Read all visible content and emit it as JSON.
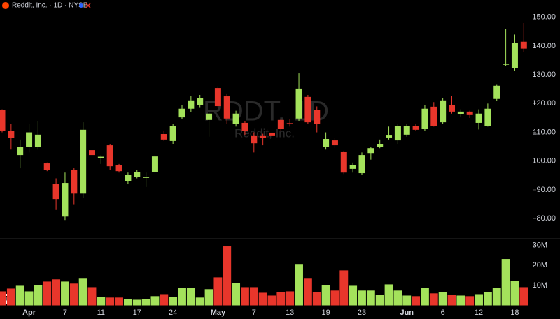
{
  "chart_data": {
    "type": "candlestick",
    "title": "Reddit, Inc. · 1D · NYSE",
    "watermark": "RDDT, 1D",
    "watermark_subtitle": "Reddit, Inc.",
    "categories": [
      null,
      null,
      null,
      "Apr",
      null,
      null,
      null,
      "7",
      null,
      null,
      null,
      "11",
      null,
      null,
      null,
      "17",
      null,
      null,
      null,
      "24",
      null,
      null,
      null,
      null,
      "May",
      null,
      null,
      null,
      "7",
      null,
      null,
      null,
      "13",
      null,
      null,
      null,
      "19",
      null,
      null,
      null,
      "23",
      null,
      null,
      null,
      null,
      "Jun",
      null,
      null,
      null,
      "6",
      null,
      null,
      null,
      "12",
      null,
      null,
      null,
      "18",
      null
    ],
    "open": [
      117.7,
      110.4,
      102.1,
      105,
      105,
      99.2,
      92,
      80.7,
      97,
      88.7,
      103.8,
      101.1,
      105.5,
      98.5,
      93.1,
      94.6,
      94.2,
      96.3,
      109.4,
      107,
      115.2,
      118.2,
      119.6,
      114.3,
      125.4,
      122.5,
      112.8,
      113.3,
      108.7,
      108.7,
      109.9,
      114.3,
      113.2,
      114.8,
      122.3,
      117.7,
      104.8,
      107.2,
      103.1,
      97.3,
      95.8,
      102.8,
      105,
      108.2,
      107.2,
      109.2,
      112.3,
      111.1,
      118.9,
      113.5,
      119.6,
      116.2,
      117.2,
      113.3,
      112.3,
      121.6,
      133.5,
      132.3,
      141.5
    ],
    "high": [
      118,
      112.8,
      107.5,
      113,
      114,
      99.5,
      94,
      96,
      97.5,
      113.5,
      105,
      102,
      106,
      99,
      96,
      97,
      96,
      102,
      110.5,
      113,
      119.5,
      122.5,
      123,
      117,
      126,
      123.5,
      117.5,
      114,
      110,
      109.5,
      111,
      114.5,
      114.5,
      130.5,
      123,
      119,
      110,
      108,
      103.5,
      99.5,
      103,
      105,
      107.5,
      112,
      113,
      113,
      113,
      119.5,
      120.5,
      122,
      122.5,
      118,
      117.5,
      118,
      120,
      126.5,
      146,
      144,
      148
    ],
    "low": [
      110,
      104,
      97.5,
      103,
      104,
      96.5,
      83,
      79.5,
      85,
      87.3,
      101,
      99,
      97,
      96,
      92,
      94,
      91,
      96,
      107,
      106,
      114.5,
      117,
      118.5,
      108.5,
      118.5,
      113,
      112,
      109,
      103,
      105.5,
      106,
      110.5,
      112,
      114,
      113,
      110,
      104,
      104.5,
      95.5,
      96,
      95.3,
      100.5,
      104.5,
      107.5,
      106,
      108.5,
      110.5,
      110.5,
      112,
      113,
      116.5,
      115.5,
      115,
      111,
      112,
      121,
      133,
      131.5,
      138
    ],
    "close": [
      110.4,
      108,
      105,
      110,
      109.2,
      96.8,
      86.8,
      92.4,
      88.7,
      110.9,
      102.1,
      101.5,
      98.2,
      96.5,
      95.3,
      96.3,
      94.4,
      101.6,
      107.5,
      112.1,
      118.2,
      121.1,
      122,
      116.5,
      119.1,
      114.8,
      116.5,
      110.4,
      106.2,
      108,
      108.7,
      111.1,
      113,
      125.2,
      113.5,
      113,
      107.7,
      105.5,
      96,
      98.5,
      102.1,
      104.5,
      105.8,
      108.9,
      112.1,
      112.1,
      110.9,
      118.2,
      112.3,
      121.1,
      117.2,
      117.2,
      116,
      116.5,
      118.2,
      126.2,
      133.8,
      141,
      139.1
    ],
    "up_color": "#a4e25b",
    "down_color": "#e8362b",
    "ylim": [
      73,
      156
    ],
    "yticks": [
      {
        "value": 80,
        "label": "80.00"
      },
      {
        "value": 90,
        "label": "90.00"
      },
      {
        "value": 100,
        "label": "100.00"
      },
      {
        "value": 110,
        "label": "110.00"
      },
      {
        "value": 120,
        "label": "120.00"
      },
      {
        "value": 130,
        "label": "130.00"
      },
      {
        "value": 140,
        "label": "140.00"
      },
      {
        "value": 150,
        "label": "150.00"
      }
    ],
    "volume": {
      "values": [
        7,
        8.4,
        9.8,
        7,
        10.2,
        11.9,
        13,
        11.9,
        10.9,
        13.7,
        9.1,
        4.2,
        3.9,
        3.9,
        3.2,
        2.8,
        3.2,
        4.6,
        5.6,
        4.2,
        8.8,
        8.8,
        3.9,
        8.1,
        14,
        29.5,
        11.2,
        9.1,
        9.1,
        6.3,
        4.9,
        6.7,
        7,
        20.7,
        13.7,
        6.7,
        10.2,
        7.4,
        17.5,
        9.8,
        7.4,
        7.4,
        5.3,
        10.5,
        7.4,
        4.9,
        4.6,
        8.8,
        6,
        6.7,
        5.3,
        4.9,
        4.6,
        5.6,
        6.7,
        8.8,
        23.2,
        12.3,
        9.1
      ],
      "ylim": [
        0,
        33
      ],
      "yticks": [
        {
          "value": 10,
          "label": "10M"
        },
        {
          "value": 20,
          "label": "20M"
        },
        {
          "value": 30,
          "label": "30M"
        }
      ]
    }
  }
}
